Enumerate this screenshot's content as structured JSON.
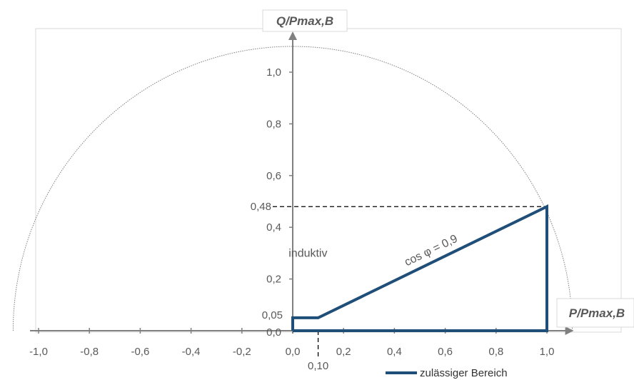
{
  "chart_data": {
    "type": "line",
    "xlabel": "P/Pmax,B",
    "ylabel": "Q/Pmax,B",
    "xlim": [
      -1.0,
      1.1
    ],
    "ylim": [
      0.0,
      1.1
    ],
    "x_ticks": [
      "-1,0",
      "-0,8",
      "-0,6",
      "-0,4",
      "-0,2",
      "0,0",
      "0,2",
      "0,4",
      "0,6",
      "0,8",
      "1,0"
    ],
    "x_tick_values": [
      -1.0,
      -0.8,
      -0.6,
      -0.4,
      -0.2,
      0.0,
      0.2,
      0.4,
      0.6,
      0.8,
      1.0
    ],
    "y_ticks": [
      "0,0",
      "0,2",
      "0,4",
      "0,6",
      "0,8",
      "1,0"
    ],
    "y_tick_values": [
      0.0,
      0.2,
      0.4,
      0.6,
      0.8,
      1.0
    ],
    "series": [
      {
        "name": "zulässiger Bereich",
        "color": "#1f4e79",
        "points": [
          [
            0.0,
            0.0
          ],
          [
            0.0,
            0.05
          ],
          [
            0.1,
            0.05
          ],
          [
            1.0,
            0.48
          ],
          [
            1.0,
            0.0
          ],
          [
            0.0,
            0.0
          ]
        ]
      }
    ],
    "circle": {
      "radius": 1.1,
      "color": "#808080"
    },
    "reference_lines": [
      {
        "label": "0,48",
        "y": 0.48,
        "x_from": 0.0,
        "x_to": 1.0
      },
      {
        "label": "0,10",
        "x": 0.1,
        "y_from": 0.0,
        "y_to": -0.12
      }
    ],
    "extra_labels": {
      "y_005": "0,05",
      "y_048": "0,48",
      "x_010": "0,10"
    },
    "annotations": {
      "cos_phi": "cos φ = 0,9",
      "inductive": "induktiv"
    },
    "legend": {
      "position": "bottom-right",
      "entries": [
        "zulässiger Bereich"
      ]
    },
    "grid": false
  }
}
